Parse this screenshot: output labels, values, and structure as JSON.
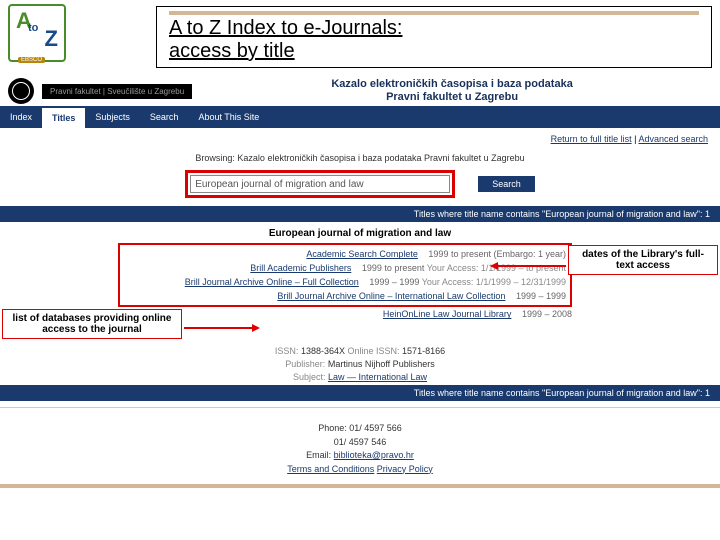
{
  "logo": {
    "a": "A",
    "to": "to",
    "z": "Z",
    "brand": "EBSCO"
  },
  "title": {
    "main": "A to Z Index to e-Journals:",
    "sub": "access by title"
  },
  "uni": {
    "left": "Pravni fakultet | Sveučilište u Zagrebu",
    "line1": "Kazalo elektroničkih časopisa i baza podataka",
    "line2": "Pravni fakultet u Zagrebu"
  },
  "nav": {
    "items": [
      "Index",
      "Titles",
      "Subjects",
      "Search",
      "About This Site"
    ],
    "active_index": 1
  },
  "links": {
    "return": "Return to full title list",
    "sep": " | ",
    "advanced": "Advanced search"
  },
  "browse": "Browsing: Kazalo elektroničkih časopisa i baza podataka Pravni fakultet u Zagrebu",
  "search": {
    "value": "European journal of migration and law",
    "button": "Search"
  },
  "bar1": "Titles where title name contains \"European journal of migration and law\": 1",
  "result": {
    "journal": "European journal of migration and law",
    "rows": [
      {
        "db": "Academic Search Complete",
        "dates": "1999 to present (Embargo: 1 year)"
      },
      {
        "db": "Brill Academic Publishers",
        "dates": "1999 to present",
        "access": "Your Access: 1/1/1999 – to present"
      },
      {
        "db": "Brill Journal Archive Online – Full Collection",
        "dates": "1999 – 1999",
        "access": "Your Access: 1/1/1999 – 12/31/1999"
      },
      {
        "db": "Brill Journal Archive Online – International Law Collection",
        "dates": "1999 – 1999"
      },
      {
        "db": "HeinOnLine Law Journal Library",
        "dates": "1999 – 2008"
      }
    ]
  },
  "callouts": {
    "right": "dates of the Library's full-text access",
    "left": "list of databases providing online access to the journal"
  },
  "meta": {
    "issn_label": "ISSN:",
    "issn": "1388-364X",
    "online_label": "Online ISSN:",
    "online": "1571-8166",
    "pub_label": "Publisher:",
    "pub": "Martinus Nijhoff Publishers",
    "subj_label": "Subject:",
    "subj": "Law — International Law"
  },
  "bar2": "Titles where title name contains \"European journal of migration and law\": 1",
  "footer": {
    "phone_label": "Phone:",
    "phone": "01/ 4597 566",
    "phone2": "01/ 4597 546",
    "email_label": "Email:",
    "email": "biblioteka@pravo.hr",
    "terms": "Terms and Conditions",
    "privacy": "Privacy Policy"
  }
}
